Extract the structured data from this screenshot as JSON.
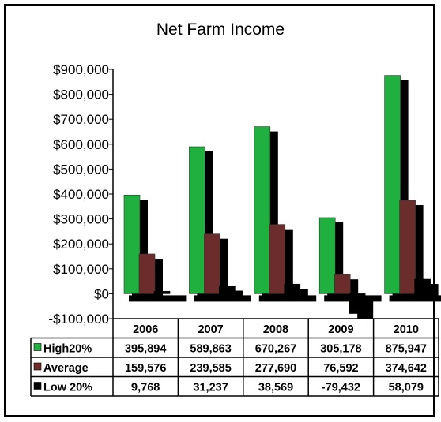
{
  "chart_data": {
    "type": "bar",
    "title": "Net Farm Income",
    "xlabel": "",
    "ylabel": "",
    "categories": [
      "2006",
      "2007",
      "2008",
      "2009",
      "2010"
    ],
    "series": [
      {
        "name": "High20%",
        "color": "#1fb040",
        "values": [
          395894,
          589863,
          670267,
          305178,
          875947
        ]
      },
      {
        "name": "Average",
        "color": "#6b2c2c",
        "values": [
          159576,
          239585,
          277690,
          76592,
          374642
        ]
      },
      {
        "name": "Low 20%",
        "color": "#000000",
        "values": [
          9768,
          31237,
          38569,
          -79432,
          58079
        ]
      }
    ],
    "table_values": [
      [
        "395,894",
        "589,863",
        "670,267",
        "305,178",
        "875,947"
      ],
      [
        "159,576",
        "239,585",
        "277,690",
        "76,592",
        "374,642"
      ],
      [
        "9,768",
        "31,237",
        "38,569",
        "-79,432",
        "58,079"
      ]
    ],
    "yticks": [
      900000,
      800000,
      700000,
      600000,
      500000,
      400000,
      300000,
      200000,
      100000,
      0,
      -100000
    ],
    "ytick_labels": [
      "$900,000",
      "$800,000",
      "$700,000",
      "$600,000",
      "$500,000",
      "$400,000",
      "$300,000",
      "$200,000",
      "$100,000",
      "$0",
      "-$100,000"
    ],
    "ylim": [
      -100000,
      900000
    ],
    "grid": false,
    "legend": "data-table"
  }
}
